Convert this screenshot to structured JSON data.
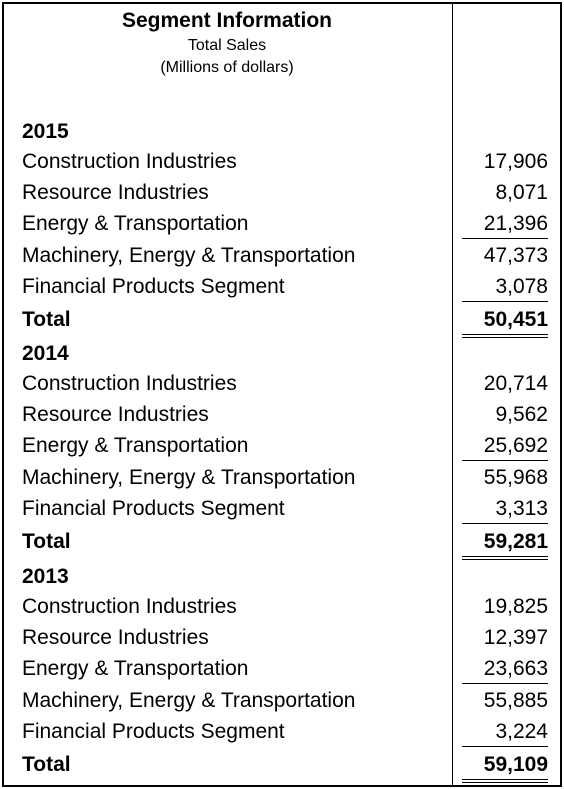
{
  "header": {
    "title": "Segment Information",
    "subtitle": "Total Sales",
    "units": "(Millions of dollars)"
  },
  "sections": [
    {
      "year": "2015",
      "rows": [
        {
          "label": "Construction Industries",
          "value": "17,906"
        },
        {
          "label": "Resource Industries",
          "value": "8,071"
        },
        {
          "label": "Energy & Transportation",
          "value": "21,396"
        },
        {
          "label": "Machinery, Energy & Transportation",
          "value": "47,373"
        },
        {
          "label": "Financial Products Segment",
          "value": "3,078"
        }
      ],
      "total": {
        "label": "Total",
        "value": "50,451"
      }
    },
    {
      "year": "2014",
      "rows": [
        {
          "label": "Construction Industries",
          "value": "20,714"
        },
        {
          "label": "Resource Industries",
          "value": "9,562"
        },
        {
          "label": "Energy & Transportation",
          "value": "25,692"
        },
        {
          "label": "Machinery, Energy & Transportation",
          "value": "55,968"
        },
        {
          "label": "Financial Products Segment",
          "value": "3,313"
        }
      ],
      "total": {
        "label": "Total",
        "value": "59,281"
      }
    },
    {
      "year": "2013",
      "rows": [
        {
          "label": "Construction Industries",
          "value": "19,825"
        },
        {
          "label": "Resource Industries",
          "value": "12,397"
        },
        {
          "label": "Energy & Transportation",
          "value": "23,663"
        },
        {
          "label": "Machinery, Energy & Transportation",
          "value": "55,885"
        },
        {
          "label": "Financial Products Segment",
          "value": "3,224"
        }
      ],
      "total": {
        "label": "Total",
        "value": "59,109"
      }
    }
  ]
}
